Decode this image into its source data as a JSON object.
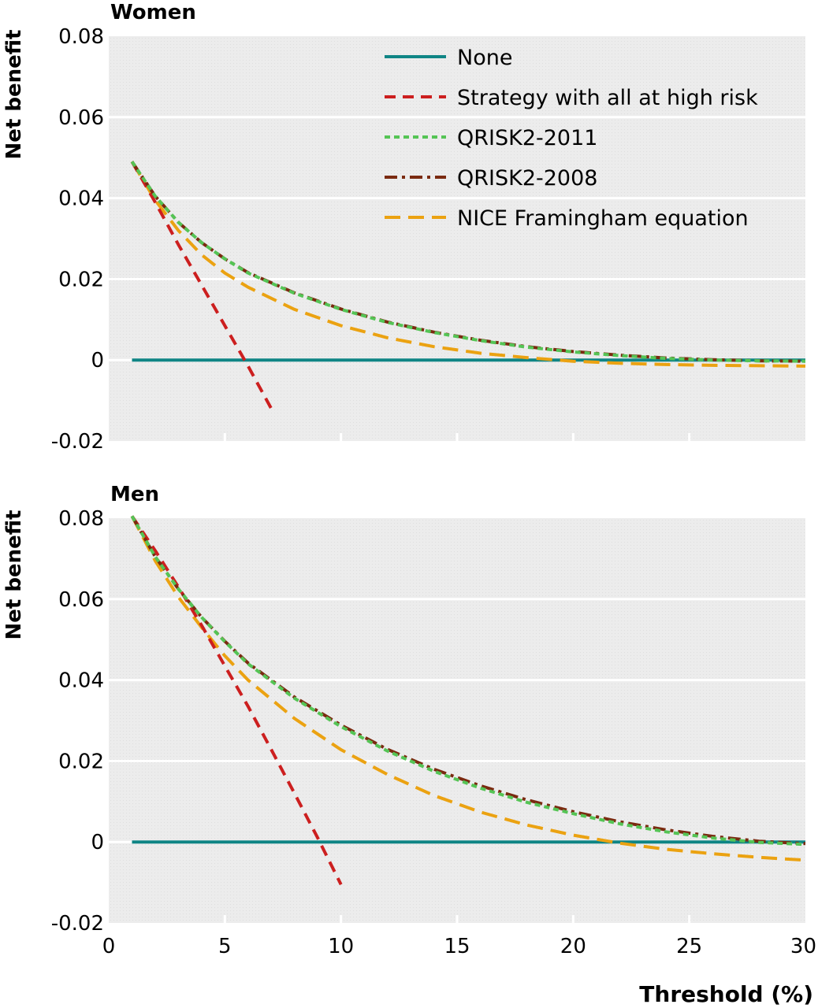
{
  "figure": {
    "xlabel": "Threshold (%)",
    "ylabel": "Net benefit"
  },
  "legend": {
    "placement": "top-right of upper panel",
    "entries": [
      {
        "key": "none",
        "label": "None",
        "color": "#0f8585",
        "dash": "solid"
      },
      {
        "key": "all",
        "label": "Strategy with all at high risk",
        "color": "#cc1f1f",
        "dash": "dashed"
      },
      {
        "key": "q2011",
        "label": "QRISK2-2011",
        "color": "#55c455",
        "dash": "short-dashed"
      },
      {
        "key": "q2008",
        "label": "QRISK2-2008",
        "color": "#7a2a10",
        "dash": "dash-dot"
      },
      {
        "key": "nice",
        "label": "NICE Framingham equation",
        "color": "#eba211",
        "dash": "long-dashed"
      }
    ]
  },
  "chart_data": [
    {
      "type": "line",
      "title": "Women",
      "xlabel": "",
      "ylabel": "Net benefit",
      "xlim": [
        0,
        30
      ],
      "ylim": [
        -0.02,
        0.08
      ],
      "xticks": [],
      "yticks": [
        "0.08",
        "0.06",
        "0.04",
        "0.02",
        "0",
        "-0.02"
      ],
      "grid": true,
      "series": [
        {
          "name": "None",
          "key": "none",
          "x": [
            1,
            30
          ],
          "y": [
            0,
            0
          ]
        },
        {
          "name": "Strategy with all at high risk",
          "key": "all",
          "x": [
            1,
            2,
            3,
            4,
            5,
            6,
            7
          ],
          "y": [
            0.049,
            0.039,
            0.0285,
            0.0185,
            0.0085,
            -0.0015,
            -0.012
          ]
        },
        {
          "name": "QRISK2-2011",
          "key": "q2011",
          "x": [
            1,
            2,
            3,
            4,
            5,
            6,
            8,
            10,
            12,
            14,
            16,
            18,
            20,
            22,
            24,
            26,
            28,
            30
          ],
          "y": [
            0.049,
            0.0405,
            0.034,
            0.029,
            0.025,
            0.0215,
            0.0165,
            0.0125,
            0.0093,
            0.0068,
            0.0048,
            0.0032,
            0.002,
            0.0011,
            0.0004,
            0.0,
            -0.0002,
            -0.0003
          ]
        },
        {
          "name": "QRISK2-2008",
          "key": "q2008",
          "x": [
            1,
            2,
            3,
            4,
            5,
            6,
            8,
            10,
            12,
            14,
            16,
            18,
            20,
            22,
            24,
            26,
            28,
            30
          ],
          "y": [
            0.049,
            0.0405,
            0.034,
            0.029,
            0.025,
            0.0216,
            0.0166,
            0.0126,
            0.0094,
            0.0069,
            0.0049,
            0.0033,
            0.0021,
            0.0012,
            0.0005,
            0.0001,
            -0.0002,
            -0.0003
          ]
        },
        {
          "name": "NICE Framingham equation",
          "key": "nice",
          "x": [
            1,
            2,
            3,
            4,
            5,
            6,
            8,
            10,
            12,
            14,
            16,
            18,
            20,
            22,
            24,
            26,
            28,
            30
          ],
          "y": [
            0.049,
            0.0395,
            0.032,
            0.026,
            0.0215,
            0.018,
            0.0125,
            0.0085,
            0.0055,
            0.0033,
            0.0017,
            0.0006,
            -0.0003,
            -0.0008,
            -0.0011,
            -0.0013,
            -0.0014,
            -0.0015
          ]
        }
      ]
    },
    {
      "type": "line",
      "title": "Men",
      "xlabel": "Threshold (%)",
      "ylabel": "Net benefit",
      "xlim": [
        0,
        30
      ],
      "ylim": [
        -0.02,
        0.08
      ],
      "xticks": [
        "0",
        "5",
        "10",
        "15",
        "20",
        "25",
        "30"
      ],
      "yticks": [
        "0.08",
        "0.06",
        "0.04",
        "0.02",
        "0",
        "-0.02"
      ],
      "grid": true,
      "series": [
        {
          "name": "None",
          "key": "none",
          "x": [
            1,
            30
          ],
          "y": [
            0,
            0
          ]
        },
        {
          "name": "Strategy with all at high risk",
          "key": "all",
          "x": [
            1,
            2,
            3,
            4,
            5,
            6,
            7,
            8,
            9,
            10
          ],
          "y": [
            0.0805,
            0.072,
            0.063,
            0.0535,
            0.0435,
            0.0335,
            0.0228,
            0.012,
            0.001,
            -0.0105
          ]
        },
        {
          "name": "QRISK2-2011",
          "key": "q2011",
          "x": [
            1,
            2,
            3,
            4,
            5,
            6,
            8,
            10,
            12,
            14,
            16,
            18,
            20,
            22,
            24,
            26,
            28,
            30
          ],
          "y": [
            0.0805,
            0.0705,
            0.0625,
            0.0555,
            0.0495,
            0.044,
            0.0355,
            0.0285,
            0.0225,
            0.0175,
            0.0133,
            0.0098,
            0.007,
            0.0045,
            0.0025,
            0.001,
            -0.0001,
            -0.0006
          ]
        },
        {
          "name": "QRISK2-2008",
          "key": "q2008",
          "x": [
            1,
            2,
            3,
            4,
            5,
            6,
            8,
            10,
            12,
            14,
            16,
            18,
            20,
            22,
            24,
            26,
            28,
            30
          ],
          "y": [
            0.0805,
            0.0705,
            0.0625,
            0.0555,
            0.0496,
            0.0442,
            0.0358,
            0.0289,
            0.0229,
            0.018,
            0.0139,
            0.0104,
            0.0075,
            0.005,
            0.003,
            0.0014,
            0.0002,
            -0.0004
          ]
        },
        {
          "name": "NICE Framingham equation",
          "key": "nice",
          "x": [
            1,
            2,
            3,
            4,
            5,
            6,
            8,
            10,
            12,
            14,
            16,
            18,
            20,
            22,
            24,
            26,
            28,
            30
          ],
          "y": [
            0.0805,
            0.0695,
            0.0605,
            0.053,
            0.046,
            0.04,
            0.0305,
            0.0228,
            0.0167,
            0.0115,
            0.0074,
            0.0042,
            0.0017,
            -0.0003,
            -0.0018,
            -0.0029,
            -0.0038,
            -0.0045
          ]
        }
      ]
    }
  ]
}
